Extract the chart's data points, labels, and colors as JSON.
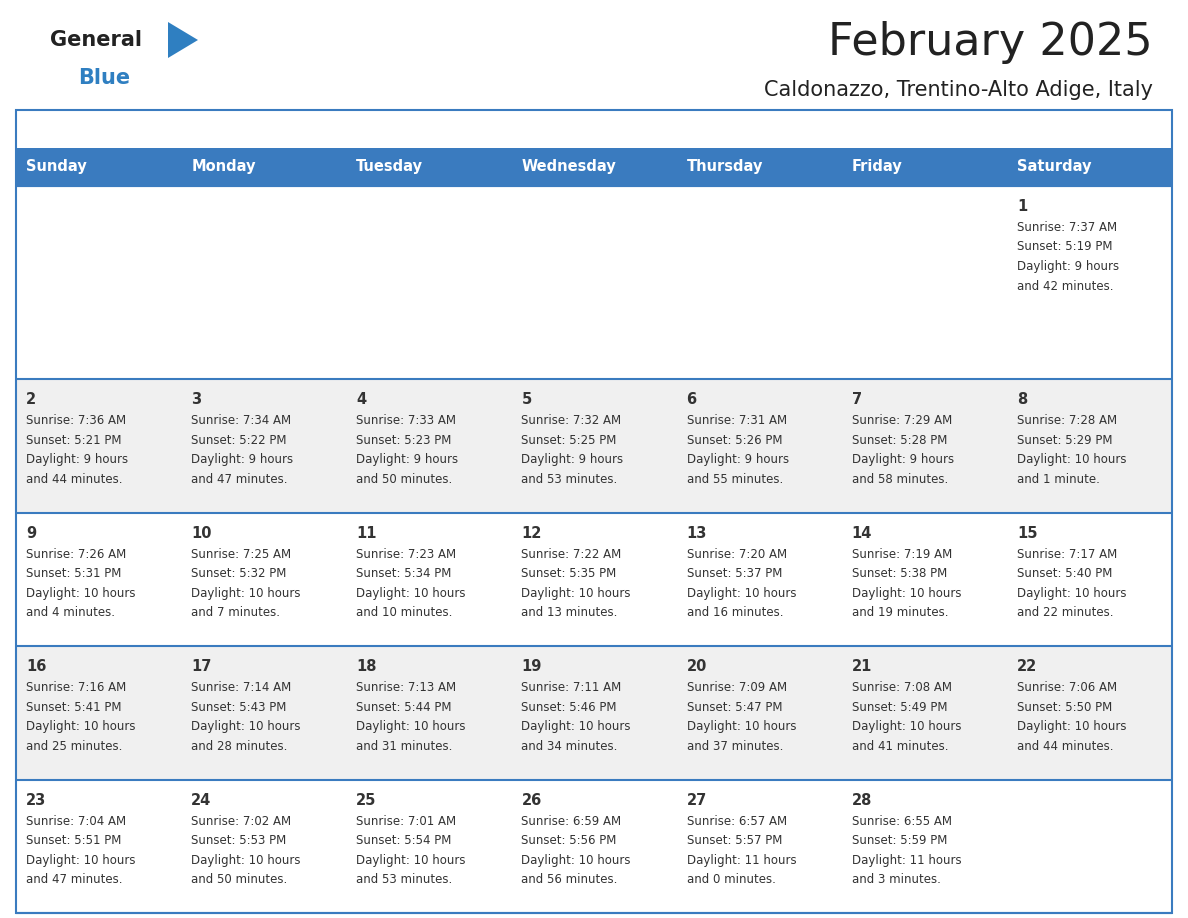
{
  "title": "February 2025",
  "subtitle": "Caldonazzo, Trentino-Alto Adige, Italy",
  "days_of_week": [
    "Sunday",
    "Monday",
    "Tuesday",
    "Wednesday",
    "Thursday",
    "Friday",
    "Saturday"
  ],
  "header_bg": "#3a7bbf",
  "header_text": "#ffffff",
  "cell_bg_odd": "#f0f0f0",
  "cell_bg_even": "#ffffff",
  "border_color": "#3a7bbf",
  "text_color": "#333333",
  "title_color": "#222222",
  "logo_general_color": "#222222",
  "logo_blue_color": "#2f7fc1",
  "weeks": [
    [
      {
        "day": null,
        "sunrise": null,
        "sunset": null,
        "daylight": null
      },
      {
        "day": null,
        "sunrise": null,
        "sunset": null,
        "daylight": null
      },
      {
        "day": null,
        "sunrise": null,
        "sunset": null,
        "daylight": null
      },
      {
        "day": null,
        "sunrise": null,
        "sunset": null,
        "daylight": null
      },
      {
        "day": null,
        "sunrise": null,
        "sunset": null,
        "daylight": null
      },
      {
        "day": null,
        "sunrise": null,
        "sunset": null,
        "daylight": null
      },
      {
        "day": 1,
        "sunrise": "7:37 AM",
        "sunset": "5:19 PM",
        "daylight": "9 hours and 42 minutes."
      }
    ],
    [
      {
        "day": 2,
        "sunrise": "7:36 AM",
        "sunset": "5:21 PM",
        "daylight": "9 hours and 44 minutes."
      },
      {
        "day": 3,
        "sunrise": "7:34 AM",
        "sunset": "5:22 PM",
        "daylight": "9 hours and 47 minutes."
      },
      {
        "day": 4,
        "sunrise": "7:33 AM",
        "sunset": "5:23 PM",
        "daylight": "9 hours and 50 minutes."
      },
      {
        "day": 5,
        "sunrise": "7:32 AM",
        "sunset": "5:25 PM",
        "daylight": "9 hours and 53 minutes."
      },
      {
        "day": 6,
        "sunrise": "7:31 AM",
        "sunset": "5:26 PM",
        "daylight": "9 hours and 55 minutes."
      },
      {
        "day": 7,
        "sunrise": "7:29 AM",
        "sunset": "5:28 PM",
        "daylight": "9 hours and 58 minutes."
      },
      {
        "day": 8,
        "sunrise": "7:28 AM",
        "sunset": "5:29 PM",
        "daylight": "10 hours and 1 minute."
      }
    ],
    [
      {
        "day": 9,
        "sunrise": "7:26 AM",
        "sunset": "5:31 PM",
        "daylight": "10 hours and 4 minutes."
      },
      {
        "day": 10,
        "sunrise": "7:25 AM",
        "sunset": "5:32 PM",
        "daylight": "10 hours and 7 minutes."
      },
      {
        "day": 11,
        "sunrise": "7:23 AM",
        "sunset": "5:34 PM",
        "daylight": "10 hours and 10 minutes."
      },
      {
        "day": 12,
        "sunrise": "7:22 AM",
        "sunset": "5:35 PM",
        "daylight": "10 hours and 13 minutes."
      },
      {
        "day": 13,
        "sunrise": "7:20 AM",
        "sunset": "5:37 PM",
        "daylight": "10 hours and 16 minutes."
      },
      {
        "day": 14,
        "sunrise": "7:19 AM",
        "sunset": "5:38 PM",
        "daylight": "10 hours and 19 minutes."
      },
      {
        "day": 15,
        "sunrise": "7:17 AM",
        "sunset": "5:40 PM",
        "daylight": "10 hours and 22 minutes."
      }
    ],
    [
      {
        "day": 16,
        "sunrise": "7:16 AM",
        "sunset": "5:41 PM",
        "daylight": "10 hours and 25 minutes."
      },
      {
        "day": 17,
        "sunrise": "7:14 AM",
        "sunset": "5:43 PM",
        "daylight": "10 hours and 28 minutes."
      },
      {
        "day": 18,
        "sunrise": "7:13 AM",
        "sunset": "5:44 PM",
        "daylight": "10 hours and 31 minutes."
      },
      {
        "day": 19,
        "sunrise": "7:11 AM",
        "sunset": "5:46 PM",
        "daylight": "10 hours and 34 minutes."
      },
      {
        "day": 20,
        "sunrise": "7:09 AM",
        "sunset": "5:47 PM",
        "daylight": "10 hours and 37 minutes."
      },
      {
        "day": 21,
        "sunrise": "7:08 AM",
        "sunset": "5:49 PM",
        "daylight": "10 hours and 41 minutes."
      },
      {
        "day": 22,
        "sunrise": "7:06 AM",
        "sunset": "5:50 PM",
        "daylight": "10 hours and 44 minutes."
      }
    ],
    [
      {
        "day": 23,
        "sunrise": "7:04 AM",
        "sunset": "5:51 PM",
        "daylight": "10 hours and 47 minutes."
      },
      {
        "day": 24,
        "sunrise": "7:02 AM",
        "sunset": "5:53 PM",
        "daylight": "10 hours and 50 minutes."
      },
      {
        "day": 25,
        "sunrise": "7:01 AM",
        "sunset": "5:54 PM",
        "daylight": "10 hours and 53 minutes."
      },
      {
        "day": 26,
        "sunrise": "6:59 AM",
        "sunset": "5:56 PM",
        "daylight": "10 hours and 56 minutes."
      },
      {
        "day": 27,
        "sunrise": "6:57 AM",
        "sunset": "5:57 PM",
        "daylight": "11 hours and 0 minutes."
      },
      {
        "day": 28,
        "sunrise": "6:55 AM",
        "sunset": "5:59 PM",
        "daylight": "11 hours and 3 minutes."
      },
      {
        "day": null,
        "sunrise": null,
        "sunset": null,
        "daylight": null
      }
    ]
  ]
}
